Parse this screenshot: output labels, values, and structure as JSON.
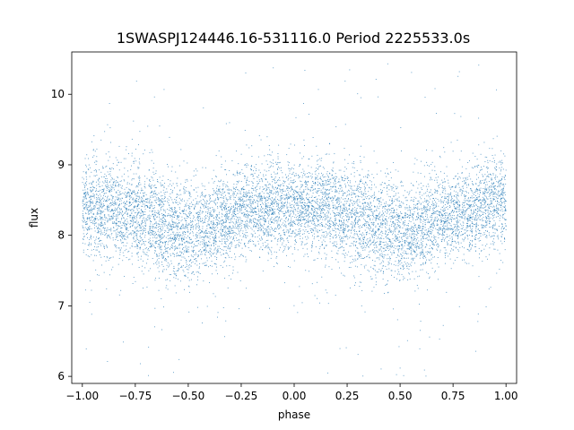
{
  "chart_data": {
    "type": "scatter",
    "title": "1SWASPJ124446.16-531116.0 Period 2225533.0s",
    "xlabel": "phase",
    "ylabel": "flux",
    "xlim": [
      -1.05,
      1.05
    ],
    "ylim": [
      5.9,
      10.6
    ],
    "x_ticks": [
      -1.0,
      -0.75,
      -0.5,
      -0.25,
      0.0,
      0.25,
      0.5,
      0.75,
      1.0
    ],
    "x_tick_labels": [
      "−1.00",
      "−0.75",
      "−0.50",
      "−0.25",
      "0.00",
      "0.25",
      "0.50",
      "0.75",
      "1.00"
    ],
    "y_ticks": [
      6,
      7,
      8,
      9,
      10
    ],
    "y_tick_labels": [
      "6",
      "7",
      "8",
      "9",
      "10"
    ],
    "grid": false,
    "marker_color": "#1f77b4",
    "series": [
      {
        "x_range": [
          -1.0,
          1.0
        ],
        "profile": [
          {
            "phase": -1.0,
            "median": 8.4,
            "spread": 0.3
          },
          {
            "phase": -0.75,
            "median": 8.3,
            "spread": 0.35
          },
          {
            "phase": -0.5,
            "median": 8.0,
            "spread": 0.35
          },
          {
            "phase": -0.25,
            "median": 8.35,
            "spread": 0.3
          },
          {
            "phase": 0.0,
            "median": 8.45,
            "spread": 0.3
          },
          {
            "phase": 0.25,
            "median": 8.3,
            "spread": 0.35
          },
          {
            "phase": 0.5,
            "median": 8.0,
            "spread": 0.35
          },
          {
            "phase": 0.75,
            "median": 8.3,
            "spread": 0.3
          },
          {
            "phase": 1.0,
            "median": 8.5,
            "spread": 0.3
          }
        ],
        "y_min": 6.0,
        "y_max": 10.5
      }
    ]
  }
}
